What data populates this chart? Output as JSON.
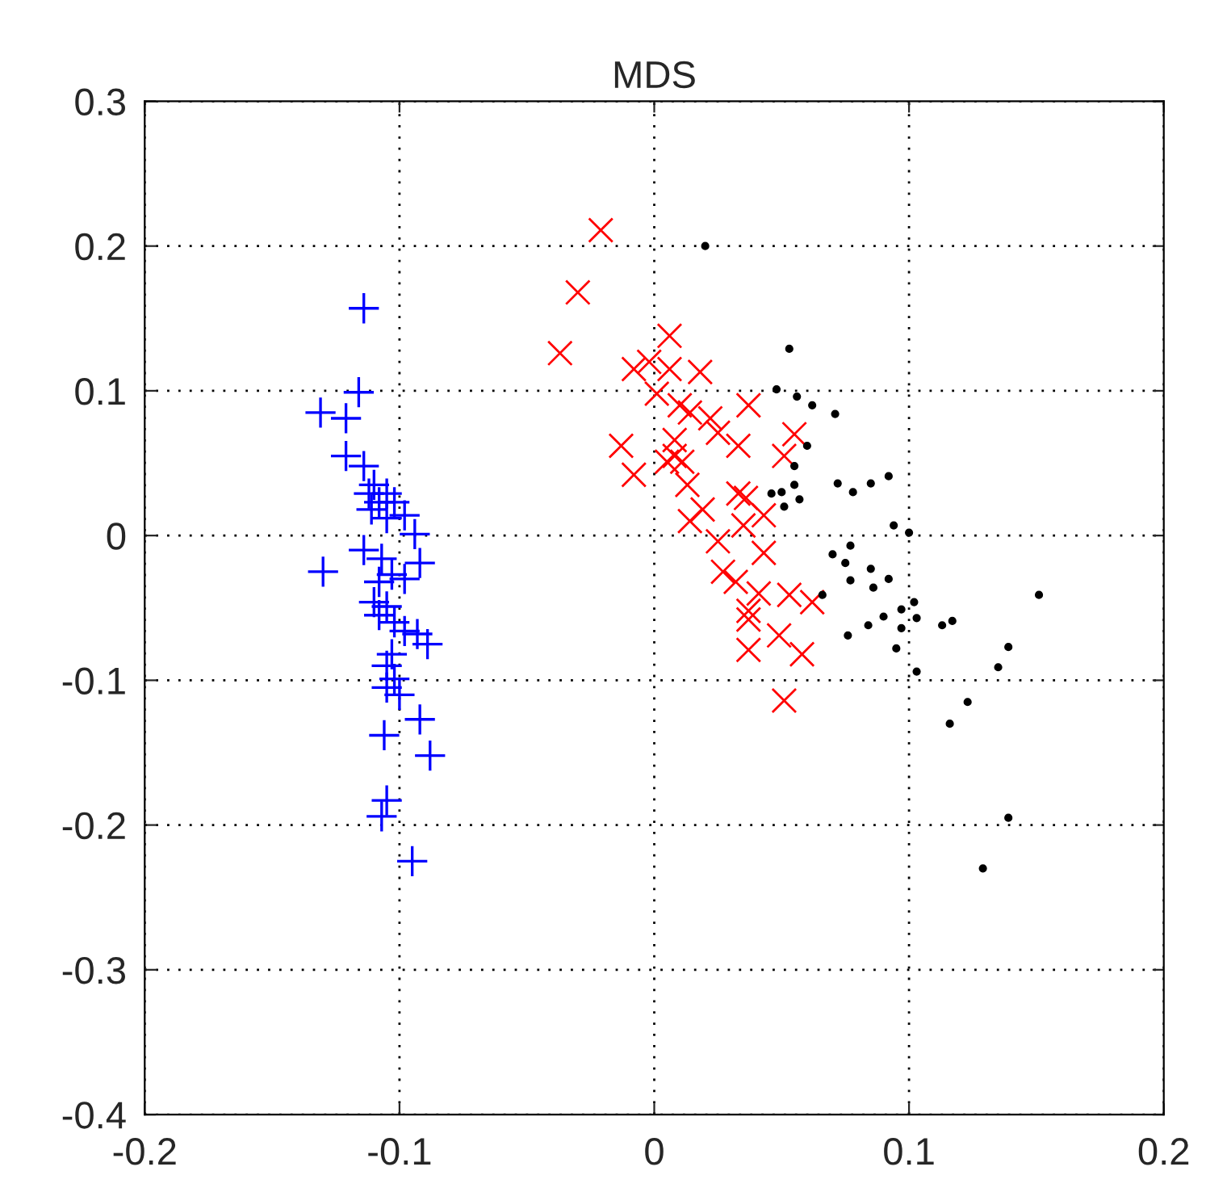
{
  "chart_data": {
    "type": "scatter",
    "title": "MDS",
    "xlim": [
      -0.2,
      0.2
    ],
    "ylim": [
      -0.4,
      0.3
    ],
    "xticks": [
      -0.2,
      -0.1,
      0,
      0.1,
      0.2
    ],
    "yticks": [
      -0.4,
      -0.3,
      -0.2,
      -0.1,
      0,
      0.1,
      0.2,
      0.3
    ],
    "grid": true,
    "line_style": "dotted",
    "series": [
      {
        "color": "#0000ff",
        "marker": "plus",
        "x": [
          -0.114,
          -0.116,
          -0.131,
          -0.121,
          -0.121,
          -0.114,
          -0.11,
          -0.108,
          -0.112,
          -0.105,
          -0.111,
          -0.102,
          -0.098,
          -0.105,
          -0.094,
          -0.114,
          -0.13,
          -0.107,
          -0.103,
          -0.098,
          -0.108,
          -0.092,
          -0.11,
          -0.108,
          -0.105,
          -0.102,
          -0.098,
          -0.093,
          -0.089,
          -0.103,
          -0.105,
          -0.102,
          -0.105,
          -0.1,
          -0.092,
          -0.088,
          -0.106,
          -0.105,
          -0.107,
          -0.095
        ],
        "values": [
          0.157,
          0.099,
          0.085,
          0.081,
          0.055,
          0.048,
          0.035,
          0.023,
          0.029,
          0.029,
          0.018,
          0.023,
          0.014,
          0.012,
          0.001,
          -0.01,
          -0.025,
          -0.016,
          -0.027,
          -0.03,
          -0.032,
          -0.019,
          -0.046,
          -0.055,
          -0.049,
          -0.06,
          -0.066,
          -0.068,
          -0.075,
          -0.082,
          -0.09,
          -0.099,
          -0.105,
          -0.11,
          -0.127,
          -0.152,
          -0.138,
          -0.183,
          -0.194,
          -0.225
        ]
      },
      {
        "color": "#ff0000",
        "marker": "cross",
        "x": [
          -0.021,
          -0.03,
          -0.037,
          0.006,
          -0.002,
          -0.008,
          0.006,
          0.018,
          0.001,
          0.01,
          0.014,
          0.037,
          0.022,
          0.025,
          0.033,
          -0.013,
          -0.008,
          0.008,
          0.008,
          0.011,
          0.005,
          0.013,
          0.055,
          0.051,
          0.033,
          0.036,
          0.043,
          0.019,
          0.014,
          0.035,
          0.025,
          0.043,
          0.027,
          0.032,
          0.041,
          0.053,
          0.062,
          0.037,
          0.037,
          0.049,
          0.037,
          0.058,
          0.051
        ],
        "values": [
          0.211,
          0.168,
          0.126,
          0.138,
          0.12,
          0.115,
          0.115,
          0.113,
          0.098,
          0.09,
          0.085,
          0.09,
          0.081,
          0.071,
          0.062,
          0.062,
          0.042,
          0.066,
          0.055,
          0.051,
          0.051,
          0.035,
          0.07,
          0.055,
          0.029,
          0.026,
          0.014,
          0.018,
          0.01,
          0.007,
          -0.004,
          -0.012,
          -0.025,
          -0.032,
          -0.04,
          -0.041,
          -0.046,
          -0.052,
          -0.058,
          -0.069,
          -0.079,
          -0.082,
          -0.114
        ]
      },
      {
        "color": "#000000",
        "marker": "circle",
        "x": [
          0.02,
          0.053,
          0.048,
          0.056,
          0.062,
          0.071,
          0.06,
          0.055,
          0.046,
          0.05,
          0.055,
          0.051,
          0.057,
          0.072,
          0.078,
          0.085,
          0.092,
          0.094,
          0.1,
          0.077,
          0.07,
          0.075,
          0.085,
          0.077,
          0.086,
          0.092,
          0.066,
          0.102,
          0.097,
          0.09,
          0.103,
          0.097,
          0.084,
          0.076,
          0.095,
          0.113,
          0.117,
          0.139,
          0.135,
          0.103,
          0.123,
          0.116,
          0.139,
          0.129,
          0.151
        ],
        "values": [
          0.2,
          0.129,
          0.101,
          0.096,
          0.09,
          0.084,
          0.062,
          0.048,
          0.029,
          0.03,
          0.035,
          0.02,
          0.025,
          0.036,
          0.03,
          0.036,
          0.041,
          0.007,
          0.002,
          -0.007,
          -0.013,
          -0.019,
          -0.023,
          -0.031,
          -0.036,
          -0.03,
          -0.041,
          -0.046,
          -0.051,
          -0.056,
          -0.057,
          -0.064,
          -0.062,
          -0.069,
          -0.078,
          -0.062,
          -0.059,
          -0.077,
          -0.091,
          -0.094,
          -0.115,
          -0.13,
          -0.195,
          -0.23,
          -0.041
        ]
      }
    ]
  }
}
